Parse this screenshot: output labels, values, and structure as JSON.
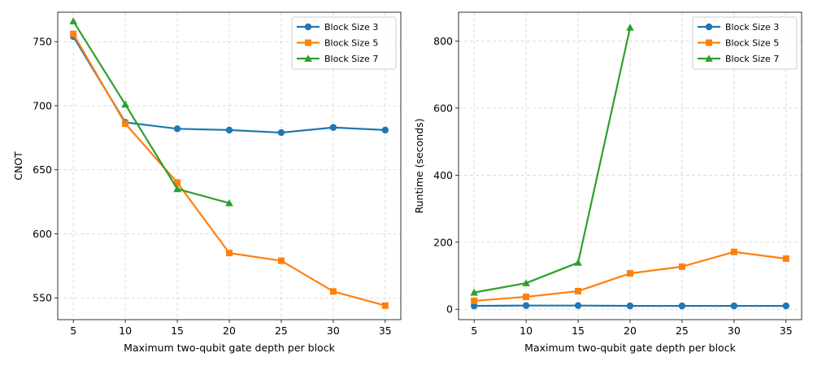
{
  "chart_data": [
    {
      "type": "line",
      "title": "",
      "xlabel": "Maximum two-qubit gate depth per block",
      "ylabel": "CNOT",
      "xlim": [
        3.5,
        36.5
      ],
      "ylim": [
        533,
        773
      ],
      "xticks": [
        5,
        10,
        15,
        20,
        25,
        30,
        35
      ],
      "yticks": [
        550,
        600,
        650,
        700,
        750
      ],
      "grid": true,
      "legend_position": "top-right",
      "series": [
        {
          "name": "Block Size 3",
          "color": "#1f77b4",
          "marker": "circle",
          "x": [
            5,
            10,
            15,
            20,
            25,
            30,
            35
          ],
          "y": [
            754,
            687,
            682,
            681,
            679,
            683,
            681
          ]
        },
        {
          "name": "Block Size 5",
          "color": "#ff7f0e",
          "marker": "square",
          "x": [
            5,
            10,
            15,
            20,
            25,
            30,
            35
          ],
          "y": [
            756,
            686,
            640,
            585,
            579,
            555,
            544
          ]
        },
        {
          "name": "Block Size 7",
          "color": "#2ca02c",
          "marker": "triangle",
          "x": [
            5,
            10,
            15,
            20
          ],
          "y": [
            766,
            701,
            635,
            624
          ]
        }
      ]
    },
    {
      "type": "line",
      "title": "",
      "xlabel": "Maximum two-qubit gate depth per block",
      "ylabel": "Runtime (seconds)",
      "xlim": [
        3.5,
        36.5
      ],
      "ylim": [
        -31,
        886
      ],
      "xticks": [
        5,
        10,
        15,
        20,
        25,
        30,
        35
      ],
      "yticks": [
        0,
        200,
        400,
        600,
        800
      ],
      "grid": true,
      "legend_position": "top-right",
      "series": [
        {
          "name": "Block Size 3",
          "color": "#1f77b4",
          "marker": "circle",
          "x": [
            5,
            10,
            15,
            20,
            25,
            30,
            35
          ],
          "y": [
            10,
            11,
            11,
            10,
            10,
            10,
            10
          ]
        },
        {
          "name": "Block Size 5",
          "color": "#ff7f0e",
          "marker": "square",
          "x": [
            5,
            10,
            15,
            20,
            25,
            30,
            35
          ],
          "y": [
            25,
            37,
            54,
            107,
            127,
            171,
            151
          ]
        },
        {
          "name": "Block Size 7",
          "color": "#2ca02c",
          "marker": "triangle",
          "x": [
            5,
            10,
            15,
            20
          ],
          "y": [
            50,
            78,
            139,
            840
          ]
        }
      ]
    }
  ]
}
